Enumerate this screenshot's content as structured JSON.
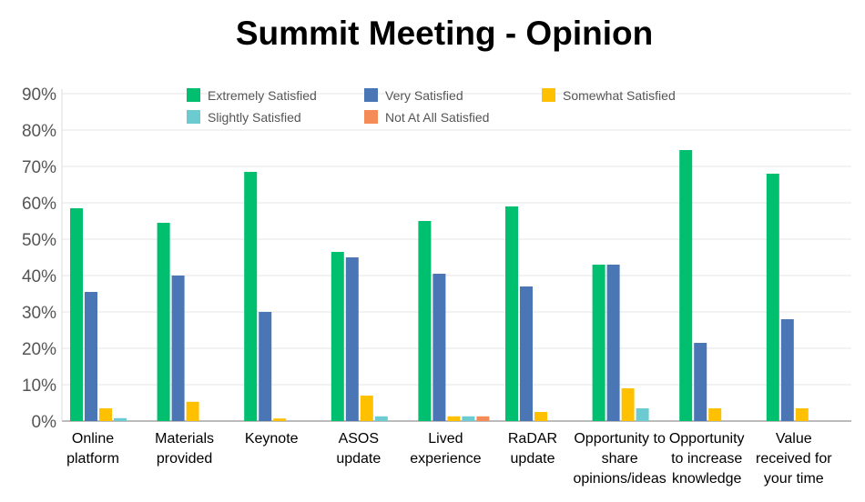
{
  "chart_data": {
    "type": "bar",
    "title": "Summit Meeting - Opinion",
    "categories": [
      [
        "Online",
        "platform"
      ],
      [
        "Materials",
        "provided"
      ],
      [
        "Keynote"
      ],
      [
        "ASOS",
        "update"
      ],
      [
        "Lived",
        "experience"
      ],
      [
        "RaDAR",
        "update"
      ],
      [
        "Opportunity to",
        "share",
        "opinions/ideas"
      ],
      [
        "Opportunity",
        "to increase",
        "knowledge"
      ],
      [
        "Value",
        "received for",
        "your time"
      ]
    ],
    "series": [
      {
        "name": "Extremely Satisfied",
        "color": "#00bf6f",
        "values": [
          58.5,
          54.5,
          68.5,
          46.5,
          55,
          59,
          43,
          74.5,
          68
        ]
      },
      {
        "name": "Very Satisfied",
        "color": "#4a76b6",
        "values": [
          35.5,
          40,
          30,
          45,
          40.5,
          37,
          43,
          21.5,
          28
        ]
      },
      {
        "name": "Somewhat Satisfied",
        "color": "#ffc000",
        "values": [
          3.5,
          5.3,
          0.7,
          7,
          1.3,
          2.5,
          9,
          3.5,
          3.5
        ]
      },
      {
        "name": "Slightly Satisfied",
        "color": "#6ccbd0",
        "values": [
          0.8,
          0,
          0,
          1.3,
          1.3,
          0,
          3.5,
          0,
          0
        ]
      },
      {
        "name": "Not At All Satisfied",
        "color": "#f58b57",
        "values": [
          0,
          0,
          0,
          0,
          1.3,
          0,
          0,
          0,
          0
        ]
      }
    ],
    "yticks": [
      "0%",
      "10%",
      "20%",
      "30%",
      "40%",
      "50%",
      "60%",
      "70%",
      "80%",
      "90%"
    ],
    "ylim": [
      0,
      90
    ],
    "grid": true,
    "legend": "top"
  }
}
